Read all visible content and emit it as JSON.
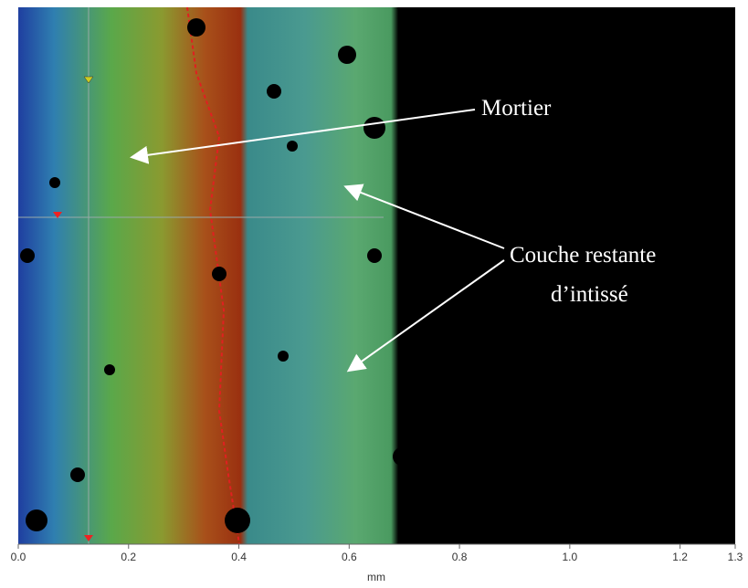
{
  "chart_data": {
    "type": "image",
    "xlabel": "mm",
    "xlim": [
      0,
      1.3
    ],
    "xticks": [
      {
        "value": 0,
        "label": "0.0"
      },
      {
        "value": 0.2,
        "label": "0.2"
      },
      {
        "value": 0.4,
        "label": "0.4"
      },
      {
        "value": 0.6,
        "label": "0.6"
      },
      {
        "value": 0.8,
        "label": "0.8"
      },
      {
        "value": 1.0,
        "label": "1.0"
      },
      {
        "value": 1.2,
        "label": "1.2"
      },
      {
        "value": 1.3,
        "label": "1.3"
      }
    ],
    "annotations": [
      "Mortier",
      "Couche restante",
      "d’intissé"
    ]
  }
}
